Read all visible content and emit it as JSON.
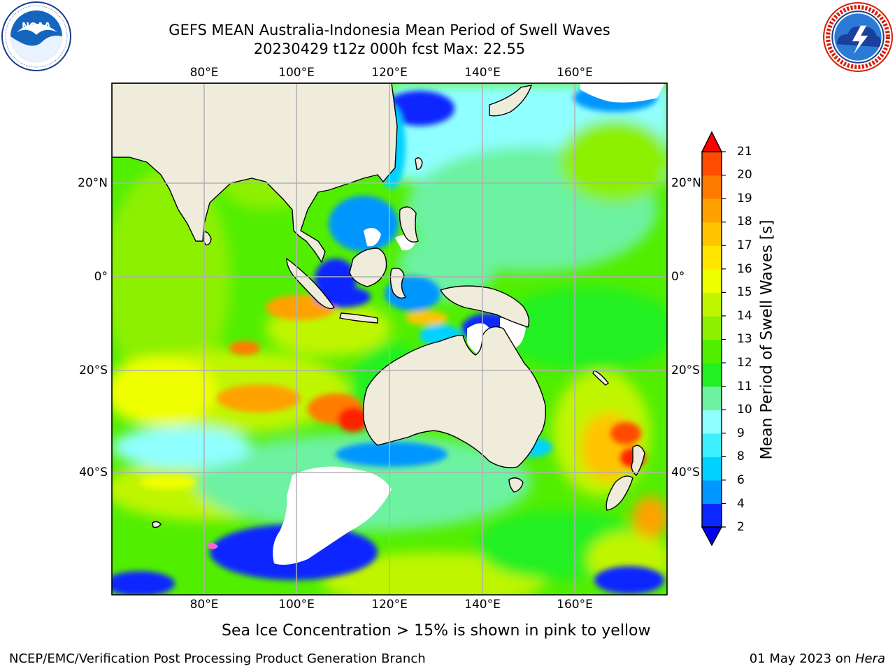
{
  "title": {
    "line1": "GEFS MEAN Australia-Indonesia Mean Period of Swell Waves",
    "line2": "20230429 t12z 000h fcst   Max: 22.55"
  },
  "logos": {
    "left": {
      "name": "noaa-logo",
      "text": "NOAA",
      "ring_text": "NATIONAL OCEANIC AND ATMOSPHERIC ADMINISTRATION · U.S. DEPARTMENT OF COMMERCE"
    },
    "right": {
      "name": "nws-logo",
      "ring_text": "NATIONAL WEATHER SERVICE"
    }
  },
  "map": {
    "lon_ticks": [
      "80°E",
      "100°E",
      "120°E",
      "140°E",
      "160°E"
    ],
    "lat_ticks_left": [
      "20°N",
      "0°",
      "20°S",
      "40°S"
    ],
    "lat_ticks_right": [
      "20°N",
      "0°",
      "20°S",
      "40°S"
    ],
    "lon_range": [
      60,
      180
    ],
    "lat_range": [
      -68,
      41
    ],
    "land_color": "#efecdc",
    "gridline_color": "#b0b0b0"
  },
  "colorbar": {
    "label": "Mean Period of Swell Waves [s]",
    "ticks": [
      "21",
      "20",
      "19",
      "18",
      "17",
      "16",
      "15",
      "14",
      "13",
      "12",
      "11",
      "10",
      "9",
      "8",
      "6",
      "4",
      "2"
    ],
    "levels": [
      2,
      4,
      6,
      8,
      9,
      10,
      11,
      12,
      13,
      14,
      15,
      16,
      17,
      18,
      19,
      20,
      21
    ],
    "colors": [
      "#0a28ff",
      "#0096ff",
      "#00d2ff",
      "#3ef0ff",
      "#90ffff",
      "#6cf2a0",
      "#22f022",
      "#52ee00",
      "#8cf000",
      "#c0f500",
      "#f0ff00",
      "#ffe500",
      "#ffc400",
      "#ffa200",
      "#ff7b00",
      "#ff4c00",
      "#ff2400"
    ],
    "under_color": "#0000ee",
    "over_color": "#ff0000"
  },
  "notes": {
    "ice": "Sea Ice Concentration > 15% is shown in pink to yellow",
    "footer_left": "NCEP/EMC/Verification Post Processing Product Generation Branch",
    "footer_date": "01 May 2023 on ",
    "footer_host": "Hera"
  }
}
